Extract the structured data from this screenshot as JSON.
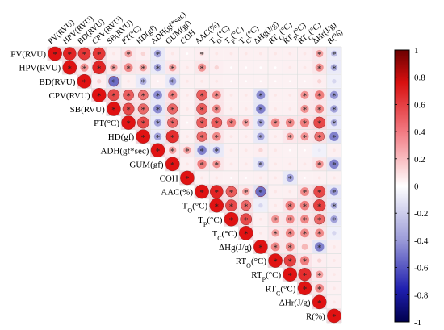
{
  "chart_data": {
    "type": "heatmap",
    "variables": [
      "PV(RVU)",
      "HPV(RVU)",
      "BD(RVU)",
      "CPV(RVU)",
      "SB(RVU)",
      "PT(°C)",
      "HD(gf)",
      "ADH(gf*sec)",
      "GUM(gf)",
      "COH",
      "AAC(%)",
      "TO(°C)",
      "TP(°C)",
      "TC(°C)",
      "ΔHg(J/g)",
      "RTO(°C)",
      "RTP(°C)",
      "RTC(°C)",
      "ΔHr(J/g)",
      "R(%)"
    ],
    "row_labels": [
      {
        "main": "PV(RVU)"
      },
      {
        "main": "HPV(RVU)"
      },
      {
        "main": "BD(RVU)"
      },
      {
        "main": "CPV(RVU)"
      },
      {
        "main": "SB(RVU)"
      },
      {
        "main": "PT(°C)"
      },
      {
        "main": "HD(gf)"
      },
      {
        "main": "ADH(gf*sec)"
      },
      {
        "main": "GUM(gf)"
      },
      {
        "main": "COH"
      },
      {
        "main": "AAC(%)"
      },
      {
        "main": "T",
        "sub": "O",
        "tail": "(°C)"
      },
      {
        "main": "T",
        "sub": "P",
        "tail": "(°C)"
      },
      {
        "main": "T",
        "sub": "C",
        "tail": "(°C)"
      },
      {
        "main": "ΔHg(J/g)"
      },
      {
        "main": "RT",
        "sub": "O",
        "tail": "(°C)"
      },
      {
        "main": "RT",
        "sub": "P",
        "tail": "(°C)"
      },
      {
        "main": "RT",
        "sub": "C",
        "tail": "(°C)"
      },
      {
        "main": "ΔHr(J/g)"
      },
      {
        "main": "R(%)"
      }
    ],
    "col_labels": [
      {
        "main": "PV(RVU)"
      },
      {
        "main": "HPV(RVU)"
      },
      {
        "main": "BD(RVU)"
      },
      {
        "main": "CPV(RVU)"
      },
      {
        "main": "SB(RVU)"
      },
      {
        "main": "PT(°C)"
      },
      {
        "main": "HD(gf)"
      },
      {
        "main": "ADH(gf*sec)"
      },
      {
        "main": "GUM(gf)"
      },
      {
        "main": "COH"
      },
      {
        "main": "AAC(%)"
      },
      {
        "main": "T",
        "sub": "O",
        "tail": "(°C)"
      },
      {
        "main": "T",
        "sub": "P",
        "tail": "(°C)"
      },
      {
        "main": "T",
        "sub": "C",
        "tail": "(°C)"
      },
      {
        "main": "ΔHg(J/g)"
      },
      {
        "main": "RT",
        "sub": "O",
        "tail": "(°C)"
      },
      {
        "main": "RT",
        "sub": "P",
        "tail": "(°C)"
      },
      {
        "main": "RT",
        "sub": "C",
        "tail": "(°C)"
      },
      {
        "main": "ΔHr(J/g)"
      },
      {
        "main": "R(%)"
      }
    ],
    "matrix_upper": [
      [
        1,
        0.9,
        0.8,
        0.8,
        0.05,
        0.3,
        0.1,
        -0.3,
        0.05,
        0,
        0.1,
        0.05,
        0.05,
        0.05,
        0.05,
        0.05,
        0.05,
        0.05,
        0.3,
        -0.2
      ],
      [
        1,
        0.35,
        0.9,
        0.3,
        0.4,
        0.3,
        -0.3,
        0.3,
        0.05,
        0.35,
        0.1,
        0,
        0,
        0,
        0,
        0.05,
        0.05,
        0.35,
        -0.25
      ],
      [
        1,
        0.1,
        -0.55,
        0.05,
        -0.25,
        0,
        -0.3,
        0.05,
        0.05,
        0.05,
        0,
        0,
        0,
        0,
        0,
        0,
        0.1,
        -0.1
      ],
      [
        1,
        0.7,
        0.6,
        0.5,
        -0.4,
        0.45,
        0.05,
        0.6,
        0.4,
        0.05,
        0.05,
        -0.4,
        0.05,
        0.05,
        0.35,
        0.45,
        -0.35
      ],
      [
        1,
        0.7,
        0.55,
        -0.4,
        0.55,
        0.05,
        0.6,
        0.4,
        0.05,
        0.05,
        -0.45,
        0.05,
        0.05,
        0.35,
        0.4,
        -0.3
      ],
      [
        1,
        0.7,
        -0.3,
        0.55,
        0,
        0.6,
        0.6,
        0.45,
        0.3,
        -0.3,
        0.4,
        0.4,
        0.45,
        0.7,
        -0.25
      ],
      [
        1,
        -0.3,
        0.85,
        0.05,
        0.55,
        0.4,
        0.05,
        0.05,
        -0.3,
        0.05,
        0.3,
        0.35,
        0.5,
        -0.45
      ],
      [
        1,
        0.3,
        0.3,
        -0.45,
        -0.3,
        0.05,
        0.05,
        0.1,
        0.05,
        0,
        0,
        -0.05,
        0.05
      ],
      [
        1,
        0.05,
        0.45,
        0.35,
        0.05,
        0.05,
        -0.25,
        0.05,
        0.05,
        0.05,
        0.35,
        -0.45
      ],
      [
        1,
        0.05,
        0.05,
        0,
        0,
        0.05,
        0.05,
        -0.3,
        0,
        0.05,
        0.05
      ],
      [
        1,
        0.9,
        0.6,
        0.3,
        -0.55,
        0.05,
        0.05,
        0.4,
        0.7,
        -0.35
      ],
      [
        1,
        0.7,
        0.55,
        -0.1,
        0.05,
        0.45,
        0.45,
        0.75,
        -0.25
      ],
      [
        1,
        0.7,
        0.05,
        0.35,
        0.4,
        0.4,
        0.55,
        -0.3
      ],
      [
        1,
        0.05,
        0.3,
        0.4,
        0.4,
        0.4,
        -0.1
      ],
      [
        1,
        0.4,
        0.4,
        0.2,
        -0.45,
        0.05
      ],
      [
        1,
        0.75,
        0.45,
        0.1,
        0.05
      ],
      [
        1,
        0.85,
        0.3,
        0.05
      ],
      [
        1,
        0.4,
        0.05
      ],
      [
        1,
        0.05
      ],
      [
        1
      ]
    ],
    "significant_upper": [
      [
        1,
        1,
        1,
        1,
        0,
        1,
        0,
        1,
        0,
        0,
        1,
        0,
        0,
        0,
        0,
        0,
        0,
        0,
        1,
        1
      ],
      [
        1,
        1,
        1,
        1,
        1,
        1,
        1,
        1,
        0,
        1,
        0,
        0,
        0,
        0,
        0,
        0,
        0,
        1,
        1
      ],
      [
        1,
        0,
        1,
        0,
        1,
        0,
        1,
        0,
        0,
        0,
        0,
        0,
        0,
        0,
        0,
        0,
        0,
        0
      ],
      [
        1,
        1,
        1,
        1,
        1,
        1,
        0,
        1,
        1,
        0,
        0,
        1,
        0,
        0,
        1,
        1,
        1
      ],
      [
        1,
        1,
        1,
        1,
        1,
        0,
        1,
        1,
        0,
        0,
        1,
        0,
        0,
        1,
        1,
        1
      ],
      [
        1,
        1,
        1,
        1,
        0,
        1,
        1,
        1,
        1,
        1,
        1,
        1,
        1,
        1,
        1
      ],
      [
        1,
        1,
        1,
        0,
        1,
        1,
        0,
        0,
        1,
        0,
        1,
        1,
        1,
        1
      ],
      [
        1,
        1,
        1,
        1,
        1,
        0,
        0,
        0,
        0,
        0,
        0,
        0,
        0
      ],
      [
        1,
        0,
        1,
        1,
        0,
        0,
        1,
        0,
        0,
        0,
        1,
        1
      ],
      [
        1,
        0,
        0,
        0,
        0,
        0,
        0,
        1,
        0,
        0,
        0
      ],
      [
        1,
        1,
        1,
        1,
        1,
        0,
        0,
        1,
        1,
        1
      ],
      [
        1,
        1,
        1,
        0,
        0,
        1,
        1,
        1,
        1
      ],
      [
        1,
        1,
        0,
        1,
        1,
        1,
        1,
        1
      ],
      [
        1,
        0,
        1,
        1,
        1,
        1,
        0
      ],
      [
        1,
        1,
        1,
        0,
        1,
        0
      ],
      [
        1,
        1,
        1,
        0,
        0
      ],
      [
        1,
        1,
        1,
        0
      ],
      [
        1,
        1,
        0
      ],
      [
        1,
        0
      ],
      [
        1
      ]
    ],
    "significance_marker": "*",
    "colorbar": {
      "range": [
        -1,
        1
      ],
      "ticks": [
        "1",
        "0.8",
        "0.6",
        "0.4",
        "0.2",
        "0",
        "-0.2",
        "-0.4",
        "-0.6",
        "-0.8",
        "-1"
      ],
      "colors": {
        "negative": "#1a1aa3",
        "neutral": "#ffffff",
        "positive": "#e01212"
      }
    }
  }
}
